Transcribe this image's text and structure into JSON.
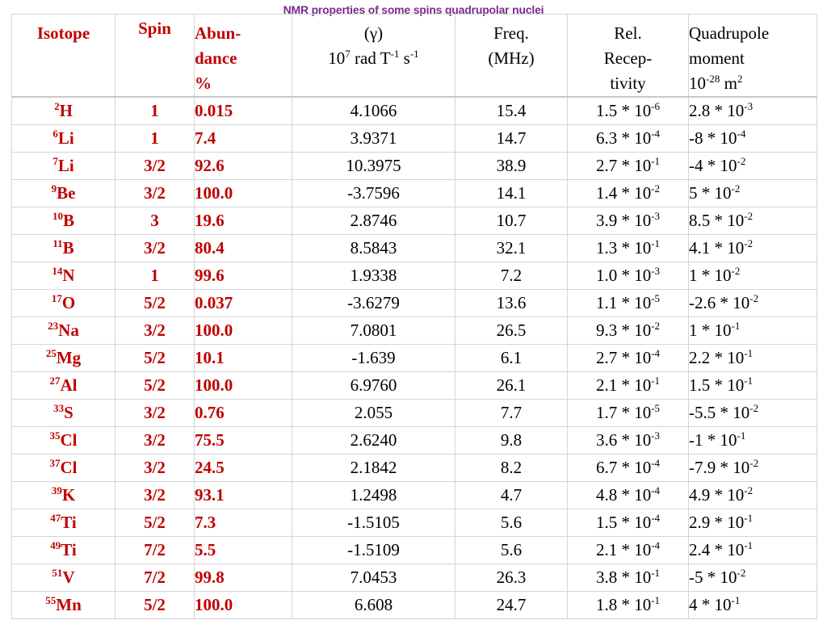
{
  "title": "NMR properties of some spins quadrupolar nuclei",
  "headers": {
    "isotope": "Isotope",
    "spin": "Spin",
    "abund_line1": "Abun-",
    "abund_line2": "dance",
    "abund_line3": "%",
    "gamma_line1": "(γ)",
    "gamma_line2_a": "10",
    "gamma_line2_exp1": "7",
    "gamma_line2_b": " rad T",
    "gamma_line2_exp2": "-1",
    "gamma_line2_c": " s",
    "gamma_line2_exp3": "-1",
    "freq_line1": "Freq.",
    "freq_line2": "(MHz)",
    "rel_line1": "Rel.",
    "rel_line2": "Recep-",
    "rel_line3": "tivity",
    "quad_line1": "Quadrupole",
    "quad_line2": "moment",
    "quad_line3_a": "10",
    "quad_line3_exp": "-28",
    "quad_line3_b": " m",
    "quad_line3_exp2": "2"
  },
  "rows": [
    {
      "mass": "2",
      "symbol": "H",
      "spin": "1",
      "abundance": "0.015",
      "gamma": "4.1066",
      "freq": "15.4",
      "rel_base": "1.5 * 10",
      "rel_exp": "-6",
      "quad_base": "2.8 * 10",
      "quad_exp": "-3"
    },
    {
      "mass": "6",
      "symbol": "Li",
      "spin": "1",
      "abundance": "7.4",
      "gamma": "3.9371",
      "freq": "14.7",
      "rel_base": "6.3 * 10",
      "rel_exp": "-4",
      "quad_base": "-8 * 10",
      "quad_exp": "-4"
    },
    {
      "mass": "7",
      "symbol": "Li",
      "spin": "3/2",
      "abundance": "92.6",
      "gamma": "10.3975",
      "freq": "38.9",
      "rel_base": "2.7 * 10",
      "rel_exp": "-1",
      "quad_base": "-4 * 10",
      "quad_exp": "-2"
    },
    {
      "mass": "9",
      "symbol": "Be",
      "spin": "3/2",
      "abundance": "100.0",
      "gamma": "-3.7596",
      "freq": "14.1",
      "rel_base": "1.4 * 10",
      "rel_exp": "-2",
      "quad_base": "5 * 10",
      "quad_exp": "-2"
    },
    {
      "mass": "10",
      "symbol": "B",
      "spin": "3",
      "abundance": "19.6",
      "gamma": "2.8746",
      "freq": "10.7",
      "rel_base": "3.9 * 10",
      "rel_exp": "-3",
      "quad_base": "8.5 * 10",
      "quad_exp": "-2"
    },
    {
      "mass": "11",
      "symbol": "B",
      "spin": "3/2",
      "abundance": "80.4",
      "gamma": "8.5843",
      "freq": "32.1",
      "rel_base": "1.3 * 10",
      "rel_exp": "-1",
      "quad_base": "4.1 * 10",
      "quad_exp": "-2"
    },
    {
      "mass": "14",
      "symbol": "N",
      "spin": "1",
      "abundance": "99.6",
      "gamma": "1.9338",
      "freq": "7.2",
      "rel_base": "1.0 * 10",
      "rel_exp": "-3",
      "quad_base": "1 * 10",
      "quad_exp": "-2"
    },
    {
      "mass": "17",
      "symbol": "O",
      "spin": "5/2",
      "abundance": "0.037",
      "gamma": "-3.6279",
      "freq": "13.6",
      "rel_base": "1.1 * 10",
      "rel_exp": "-5",
      "quad_base": "-2.6 * 10",
      "quad_exp": "-2"
    },
    {
      "mass": "23",
      "symbol": "Na",
      "spin": "3/2",
      "abundance": "100.0",
      "gamma": "7.0801",
      "freq": "26.5",
      "rel_base": "9.3 * 10",
      "rel_exp": "-2",
      "quad_base": "1 * 10",
      "quad_exp": "-1"
    },
    {
      "mass": "25",
      "symbol": "Mg",
      "spin": "5/2",
      "abundance": "10.1",
      "gamma": "-1.639",
      "freq": "6.1",
      "rel_base": "2.7 * 10",
      "rel_exp": "-4",
      "quad_base": "2.2 * 10",
      "quad_exp": "-1"
    },
    {
      "mass": "27",
      "symbol": "Al",
      "spin": "5/2",
      "abundance": "100.0",
      "gamma": "6.9760",
      "freq": "26.1",
      "rel_base": "2.1 * 10",
      "rel_exp": "-1",
      "quad_base": "1.5 * 10",
      "quad_exp": "-1"
    },
    {
      "mass": "33",
      "symbol": "S",
      "spin": "3/2",
      "abundance": "0.76",
      "gamma": "2.055",
      "freq": "7.7",
      "rel_base": "1.7 * 10",
      "rel_exp": "-5",
      "quad_base": "-5.5 * 10",
      "quad_exp": "-2"
    },
    {
      "mass": "35",
      "symbol": "Cl",
      "spin": "3/2",
      "abundance": "75.5",
      "gamma": "2.6240",
      "freq": "9.8",
      "rel_base": "3.6 * 10",
      "rel_exp": "-3",
      "quad_base": "-1 * 10",
      "quad_exp": "-1"
    },
    {
      "mass": "37",
      "symbol": "Cl",
      "spin": "3/2",
      "abundance": "24.5",
      "gamma": "2.1842",
      "freq": "8.2",
      "rel_base": "6.7 * 10",
      "rel_exp": "-4",
      "quad_base": "-7.9 * 10",
      "quad_exp": "-2"
    },
    {
      "mass": "39",
      "symbol": "K",
      "spin": "3/2",
      "abundance": "93.1",
      "gamma": "1.2498",
      "freq": "4.7",
      "rel_base": "4.8 * 10",
      "rel_exp": "-4",
      "quad_base": "4.9 * 10",
      "quad_exp": "-2"
    },
    {
      "mass": "47",
      "symbol": "Ti",
      "spin": "5/2",
      "abundance": "7.3",
      "gamma": "-1.5105",
      "freq": "5.6",
      "rel_base": "1.5 * 10",
      "rel_exp": "-4",
      "quad_base": "2.9 * 10",
      "quad_exp": "-1"
    },
    {
      "mass": "49",
      "symbol": "Ti",
      "spin": "7/2",
      "abundance": "5.5",
      "gamma": "-1.5109",
      "freq": "5.6",
      "rel_base": "2.1 * 10",
      "rel_exp": "-4",
      "quad_base": "2.4 * 10",
      "quad_exp": "-1"
    },
    {
      "mass": "51",
      "symbol": "V",
      "spin": "7/2",
      "abundance": "99.8",
      "gamma": "7.0453",
      "freq": "26.3",
      "rel_base": "3.8 * 10",
      "rel_exp": "-1",
      "quad_base": "-5 * 10",
      "quad_exp": "-2"
    },
    {
      "mass": "55",
      "symbol": "Mn",
      "spin": "5/2",
      "abundance": "100.0",
      "gamma": "6.608",
      "freq": "24.7",
      "rel_base": "1.8 * 10",
      "rel_exp": "-1",
      "quad_base": "4 * 10",
      "quad_exp": "-1"
    }
  ]
}
